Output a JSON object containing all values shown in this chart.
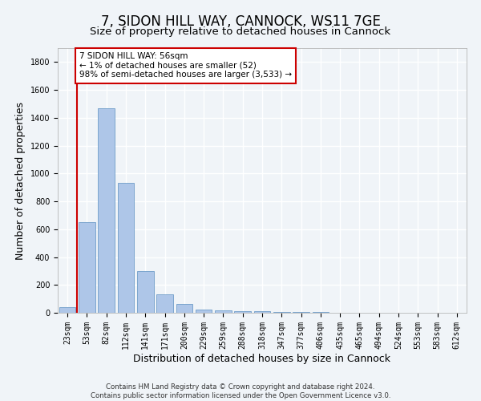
{
  "title1": "7, SIDON HILL WAY, CANNOCK, WS11 7GE",
  "title2": "Size of property relative to detached houses in Cannock",
  "xlabel": "Distribution of detached houses by size in Cannock",
  "ylabel": "Number of detached properties",
  "categories": [
    "23sqm",
    "53sqm",
    "82sqm",
    "112sqm",
    "141sqm",
    "171sqm",
    "200sqm",
    "229sqm",
    "259sqm",
    "288sqm",
    "318sqm",
    "347sqm",
    "377sqm",
    "406sqm",
    "435sqm",
    "465sqm",
    "494sqm",
    "524sqm",
    "553sqm",
    "583sqm",
    "612sqm"
  ],
  "values": [
    40,
    650,
    1470,
    935,
    300,
    135,
    65,
    25,
    15,
    10,
    10,
    5,
    5,
    3,
    2,
    2,
    2,
    2,
    2,
    2,
    2
  ],
  "bar_color": "#aec6e8",
  "bar_edge_color": "#5a8fc0",
  "vline_x": 0.5,
  "vline_color": "#cc0000",
  "annotation_text": "7 SIDON HILL WAY: 56sqm\n← 1% of detached houses are smaller (52)\n98% of semi-detached houses are larger (3,533) →",
  "annotation_box_color": "#cc0000",
  "ylim": [
    0,
    1900
  ],
  "yticks": [
    0,
    200,
    400,
    600,
    800,
    1000,
    1200,
    1400,
    1600,
    1800
  ],
  "footer1": "Contains HM Land Registry data © Crown copyright and database right 2024.",
  "footer2": "Contains public sector information licensed under the Open Government Licence v3.0.",
  "bg_color": "#f0f4f8",
  "plot_bg_color": "#f0f4f8",
  "grid_color": "#ffffff",
  "title1_fontsize": 12,
  "title2_fontsize": 9.5,
  "tick_fontsize": 7,
  "ylabel_fontsize": 9,
  "xlabel_fontsize": 9,
  "annotation_fontsize": 7.5
}
